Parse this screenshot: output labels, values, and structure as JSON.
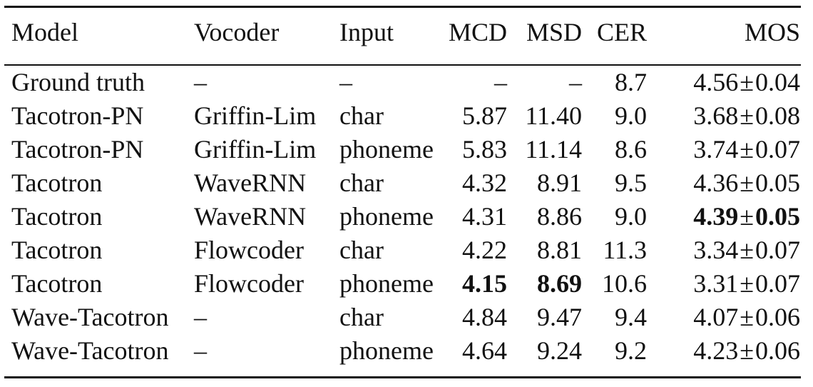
{
  "table": {
    "headers": {
      "model": "Model",
      "vocoder": "Vocoder",
      "input": "Input",
      "mcd": "MCD",
      "msd": "MSD",
      "cer": "CER",
      "mos": "MOS"
    },
    "pm_symbol": "±",
    "rows": [
      {
        "model": "Ground truth",
        "vocoder": "–",
        "input": "–",
        "mcd": "–",
        "msd": "–",
        "cer": "8.7",
        "mos_mean": "4.56",
        "mos_ci": "0.04"
      },
      {
        "model": "Tacotron-PN",
        "vocoder": "Griffin-Lim",
        "input": "char",
        "mcd": "5.87",
        "msd": "11.40",
        "cer": "9.0",
        "mos_mean": "3.68",
        "mos_ci": "0.08"
      },
      {
        "model": "Tacotron-PN",
        "vocoder": "Griffin-Lim",
        "input": "phoneme",
        "mcd": "5.83",
        "msd": "11.14",
        "cer": "8.6",
        "mos_mean": "3.74",
        "mos_ci": "0.07"
      },
      {
        "model": "Tacotron",
        "vocoder": "WaveRNN",
        "input": "char",
        "mcd": "4.32",
        "msd": "8.91",
        "cer": "9.5",
        "mos_mean": "4.36",
        "mos_ci": "0.05"
      },
      {
        "model": "Tacotron",
        "vocoder": "WaveRNN",
        "input": "phoneme",
        "mcd": "4.31",
        "msd": "8.86",
        "cer": "9.0",
        "mos_mean": "4.39",
        "mos_ci": "0.05"
      },
      {
        "model": "Tacotron",
        "vocoder": "Flowcoder",
        "input": "char",
        "mcd": "4.22",
        "msd": "8.81",
        "cer": "11.3",
        "mos_mean": "3.34",
        "mos_ci": "0.07"
      },
      {
        "model": "Tacotron",
        "vocoder": "Flowcoder",
        "input": "phoneme",
        "mcd": "4.15",
        "msd": "8.69",
        "cer": "10.6",
        "mos_mean": "3.31",
        "mos_ci": "0.07"
      },
      {
        "model": "Wave-Tacotron",
        "vocoder": "–",
        "input": "char",
        "mcd": "4.84",
        "msd": "9.47",
        "cer": "9.4",
        "mos_mean": "4.07",
        "mos_ci": "0.06"
      },
      {
        "model": "Wave-Tacotron",
        "vocoder": "–",
        "input": "phoneme",
        "mcd": "4.64",
        "msd": "9.24",
        "cer": "9.2",
        "mos_mean": "4.23",
        "mos_ci": "0.06"
      }
    ]
  }
}
